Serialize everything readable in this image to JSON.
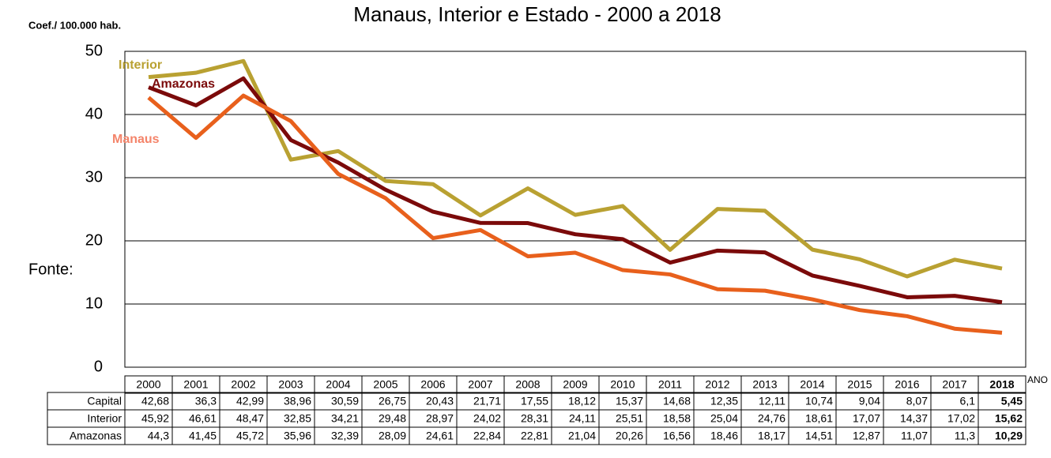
{
  "chart_data": {
    "type": "line",
    "title": "Manaus, Interior e Estado - 2000 a 2018",
    "y_axis_label": "Coef./ 100.000 hab.",
    "x_axis_label": "ANO",
    "source_label": "Fonte:",
    "annotations": [
      {
        "text": "Manaus",
        "color": "#f4846a"
      }
    ],
    "categories": [
      "2000",
      "2001",
      "2002",
      "2003",
      "2004",
      "2005",
      "2006",
      "2007",
      "2008",
      "2009",
      "2010",
      "2011",
      "2012",
      "2013",
      "2014",
      "2015",
      "2016",
      "2017",
      "2018"
    ],
    "series": [
      {
        "name": "Capital",
        "color": "#e8601c",
        "values": [
          42.68,
          36.3,
          42.99,
          38.96,
          30.59,
          26.75,
          20.43,
          21.71,
          17.55,
          18.12,
          15.37,
          14.68,
          12.35,
          12.11,
          10.74,
          9.04,
          8.07,
          6.1,
          5.45
        ],
        "value_labels": [
          "42,68",
          "36,3",
          "42,99",
          "38,96",
          "30,59",
          "26,75",
          "20,43",
          "21,71",
          "17,55",
          "18,12",
          "15,37",
          "14,68",
          "12,35",
          "12,11",
          "10,74",
          "9,04",
          "8,07",
          "6,1",
          "5,45"
        ]
      },
      {
        "name": "Interior",
        "color": "#b9a132",
        "values": [
          45.92,
          46.61,
          48.47,
          32.85,
          34.21,
          29.48,
          28.97,
          24.02,
          28.31,
          24.11,
          25.51,
          18.58,
          25.04,
          24.76,
          18.61,
          17.07,
          14.37,
          17.02,
          15.62
        ],
        "value_labels": [
          "45,92",
          "46,61",
          "48,47",
          "32,85",
          "34,21",
          "29,48",
          "28,97",
          "24,02",
          "28,31",
          "24,11",
          "25,51",
          "18,58",
          "25,04",
          "24,76",
          "18,61",
          "17,07",
          "14,37",
          "17,02",
          "15,62"
        ]
      },
      {
        "name": "Amazonas",
        "color": "#7b0a0a",
        "values": [
          44.3,
          41.45,
          45.72,
          35.96,
          32.39,
          28.09,
          24.61,
          22.84,
          22.81,
          21.04,
          20.26,
          16.56,
          18.46,
          18.17,
          14.51,
          12.87,
          11.07,
          11.3,
          10.29
        ],
        "value_labels": [
          "44,3",
          "41,45",
          "45,72",
          "35,96",
          "32,39",
          "28,09",
          "24,61",
          "22,84",
          "22,81",
          "21,04",
          "20,26",
          "16,56",
          "18,46",
          "18,17",
          "14,51",
          "12,87",
          "11,07",
          "11,3",
          "10,29"
        ]
      }
    ],
    "ylim": [
      0,
      50
    ],
    "yticks": [
      0,
      10,
      20,
      30,
      40,
      50
    ],
    "grid": true
  }
}
